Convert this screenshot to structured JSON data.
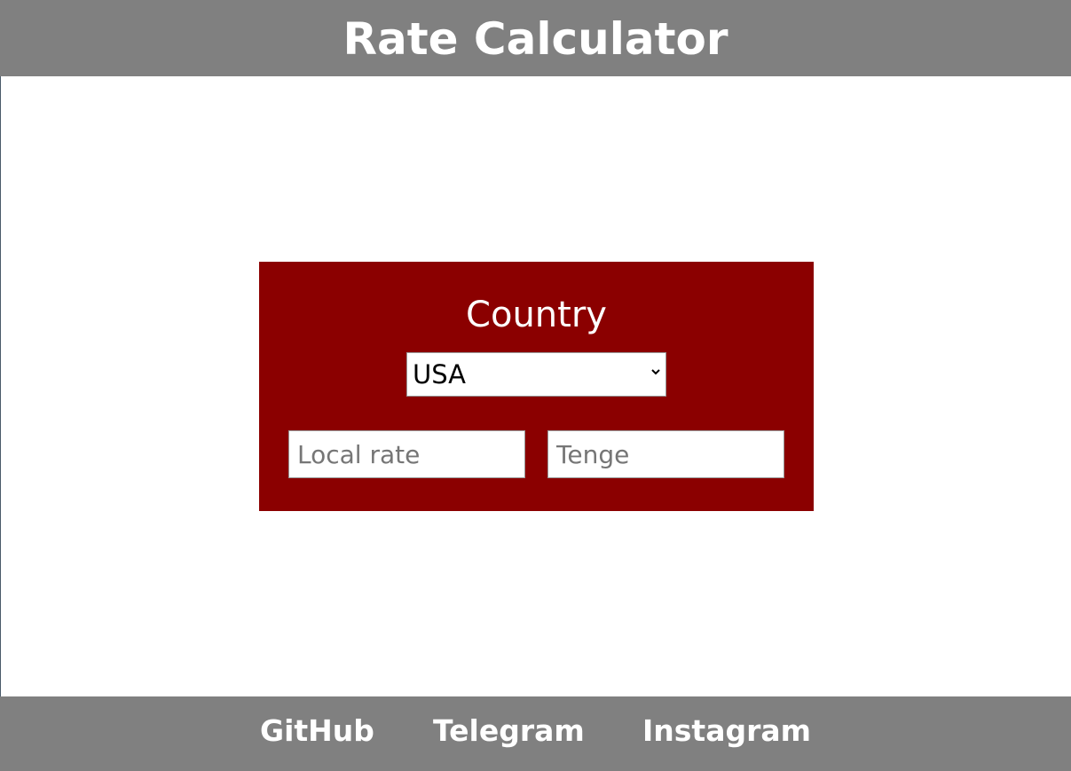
{
  "header": {
    "title": "Rate Calculator"
  },
  "converter": {
    "label": "Country",
    "country_select": {
      "selected": "USA"
    },
    "local_rate_input": {
      "value": "",
      "placeholder": "Local rate"
    },
    "tenge_input": {
      "value": "",
      "placeholder": "Tenge"
    }
  },
  "footer": {
    "links": [
      {
        "label": "GitHub"
      },
      {
        "label": "Telegram"
      },
      {
        "label": "Instagram"
      }
    ]
  },
  "colors": {
    "header_bg": "#808080",
    "card_bg": "#8b0000",
    "footer_bg": "#808080",
    "text_light": "#ffffff"
  },
  "icons": {
    "select_arrow": "chevron-down-icon"
  }
}
